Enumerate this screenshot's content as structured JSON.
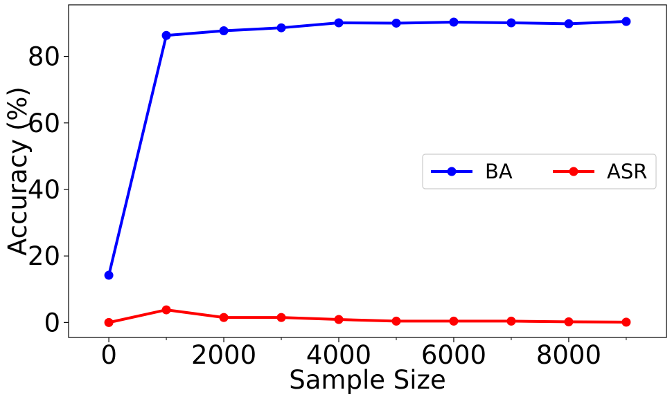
{
  "chart_data": {
    "type": "line",
    "title": "",
    "xlabel": "Sample Size",
    "ylabel": "Accuracy (%)",
    "x": [
      0,
      1000,
      2000,
      3000,
      4000,
      5000,
      6000,
      7000,
      8000,
      9000
    ],
    "xlim": [
      -700,
      9700
    ],
    "ylim": [
      -4.5,
      95.5
    ],
    "x_ticks": [
      0,
      2000,
      4000,
      6000,
      8000
    ],
    "x_minor_ticks": [
      1000,
      3000,
      5000,
      7000,
      9000
    ],
    "y_ticks": [
      0,
      20,
      40,
      60,
      80
    ],
    "grid": false,
    "legend_position": "center-right",
    "legend_columns": 2,
    "series": [
      {
        "name": "BA",
        "color": "#0000ff",
        "marker": "circle",
        "values": [
          14.2,
          86.3,
          87.7,
          88.6,
          90.1,
          90.0,
          90.3,
          90.1,
          89.8,
          90.5
        ]
      },
      {
        "name": "ASR",
        "color": "#ff0000",
        "marker": "circle",
        "values": [
          0.0,
          3.8,
          1.5,
          1.5,
          0.9,
          0.4,
          0.4,
          0.4,
          0.2,
          0.1
        ]
      }
    ]
  }
}
